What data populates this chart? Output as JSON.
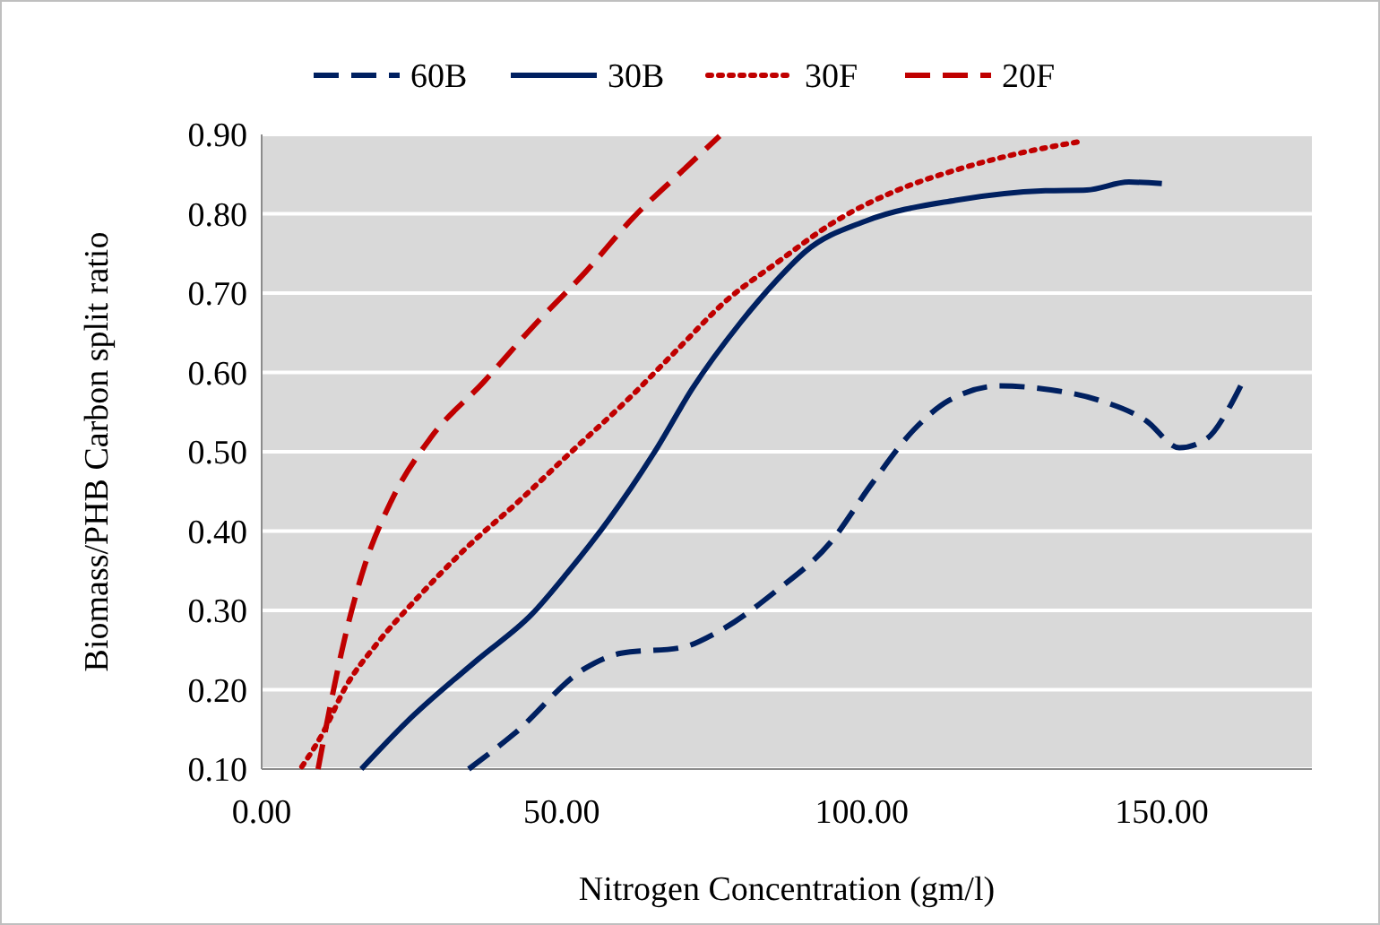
{
  "chart_data": {
    "type": "line",
    "xlabel": "Nitrogen Concentration  (gm/l)",
    "ylabel": "Biomass/PHB Carbon split ratio",
    "xlim": [
      0,
      175
    ],
    "ylim": [
      0.1,
      0.9
    ],
    "xticks": [
      {
        "value": 0,
        "label": "0.00"
      },
      {
        "value": 50,
        "label": "50.00"
      },
      {
        "value": 100,
        "label": "100.00"
      },
      {
        "value": 150,
        "label": "150.00"
      }
    ],
    "yticks": [
      {
        "value": 0.1,
        "label": "0.10"
      },
      {
        "value": 0.2,
        "label": "0.20"
      },
      {
        "value": 0.3,
        "label": "0.30"
      },
      {
        "value": 0.4,
        "label": "0.40"
      },
      {
        "value": 0.5,
        "label": "0.50"
      },
      {
        "value": 0.6,
        "label": "0.60"
      },
      {
        "value": 0.7,
        "label": "0.70"
      },
      {
        "value": 0.8,
        "label": "0.80"
      },
      {
        "value": 0.9,
        "label": "0.90"
      }
    ],
    "grid": "y",
    "legend": "top",
    "marker": "none",
    "series": [
      {
        "name": "60B",
        "color": "#002060",
        "line_style": "dashed",
        "x": [
          34.5,
          42,
          53.9,
          59.9,
          69.9,
          75.8,
          85.8,
          94.7,
          101.7,
          108.7,
          114.6,
          123.1,
          131.5,
          139.5,
          147.4,
          152.9,
          157.4,
          161.4,
          163.2
        ],
        "values": [
          0.1,
          0.144,
          0.227,
          0.246,
          0.253,
          0.272,
          0.325,
          0.385,
          0.46,
          0.528,
          0.565,
          0.583,
          0.578,
          0.565,
          0.539,
          0.505,
          0.516,
          0.558,
          0.584
        ]
      },
      {
        "name": "30B",
        "color": "#002060",
        "line_style": "solid",
        "x": [
          16.6,
          24.1,
          36,
          45,
          50.9,
          57.9,
          65.9,
          71.8,
          79.8,
          85.8,
          90.7,
          100.7,
          115.6,
          130.6,
          137.5,
          144.5,
          150
        ],
        "values": [
          0.1,
          0.159,
          0.238,
          0.295,
          0.347,
          0.415,
          0.505,
          0.58,
          0.663,
          0.716,
          0.753,
          0.791,
          0.817,
          0.829,
          0.83,
          0.84,
          0.838
        ]
      },
      {
        "name": "30F",
        "color": "#c00000",
        "line_style": "dotted",
        "x": [
          6.7,
          10.1,
          14.1,
          19.1,
          26.1,
          34,
          42.9,
          51.9,
          60.9,
          68.9,
          77.8,
          85.8,
          95.7,
          105.7,
          115.6,
          125.5,
          136.3
        ],
        "values": [
          0.103,
          0.144,
          0.205,
          0.257,
          0.317,
          0.378,
          0.438,
          0.502,
          0.565,
          0.626,
          0.693,
          0.738,
          0.791,
          0.829,
          0.855,
          0.875,
          0.891
        ]
      },
      {
        "name": "20F",
        "color": "#c00000",
        "line_style": "dashed",
        "x": [
          9.4,
          11.1,
          13.6,
          17.1,
          21.6,
          28.1,
          37,
          45,
          54,
          61.9,
          70.8,
          76.3
        ],
        "values": [
          0.1,
          0.167,
          0.257,
          0.355,
          0.438,
          0.517,
          0.588,
          0.656,
          0.727,
          0.795,
          0.859,
          0.898
        ]
      }
    ]
  }
}
